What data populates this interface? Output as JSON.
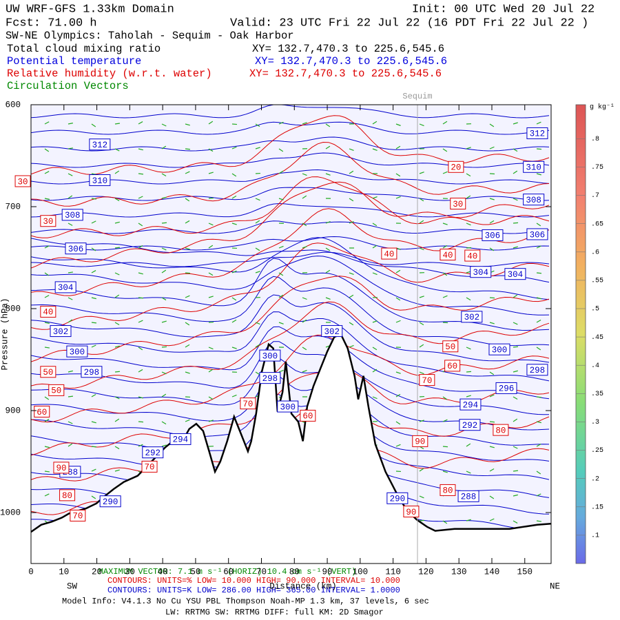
{
  "header": {
    "model": "UW WRF-GFS 1.33km Domain",
    "init": "Init: 00 UTC Wed 20 Jul 22",
    "fcst": "Fcst:    71.00 h",
    "valid": "Valid: 23 UTC Fri 22 Jul 22   (16 PDT Fri 22 Jul 22  )",
    "section": "SW-NE Olympics: Taholah - Sequim - Oak Harbor",
    "fields": [
      {
        "name": "Total cloud mixing ratio",
        "xy": "XY= 132.7,470.3 to 225.6,545.6",
        "color": "#000000"
      },
      {
        "name": "Potential temperature",
        "xy": "XY= 132.7,470.3 to 225.6,545.6",
        "color": "#0000dd"
      },
      {
        "name": "Relative humidity (w.r.t. water)",
        "xy": "XY= 132.7,470.3 to 225.6,545.6",
        "color": "#dd0000"
      },
      {
        "name": "Circulation Vectors",
        "color": "#008800"
      }
    ]
  },
  "chart_data": {
    "type": "cross-section",
    "x_label": "Distance (km)",
    "y_label": "Pressure (hPa)",
    "x_left": "SW",
    "x_right": "NE",
    "xlim": [
      0,
      158
    ],
    "xticks": [
      0,
      10,
      20,
      30,
      40,
      50,
      60,
      70,
      80,
      90,
      100,
      110,
      120,
      130,
      140,
      150
    ],
    "ylim": [
      600,
      1050
    ],
    "yticks": [
      600,
      700,
      800,
      900,
      1000
    ],
    "markers": [
      {
        "label": "Sequim",
        "x": 117.4
      }
    ],
    "terrain": {
      "x": [
        0,
        3.1,
        6.3,
        9.4,
        11.5,
        13.6,
        16.7,
        19.9,
        22.0,
        25.1,
        28.2,
        32.4,
        36.6,
        40.8,
        43.9,
        46.0,
        48.1,
        50.2,
        52.3,
        54.4,
        55.9,
        57.5,
        59.6,
        61.7,
        63.8,
        65.9,
        66.9,
        68.4,
        70.1,
        72.2,
        73.6,
        74.9,
        76.4,
        77.4,
        79.1,
        81.2,
        82.6,
        83.9,
        85.8,
        87.9,
        90.0,
        92.1,
        94.1,
        96.2,
        98.3,
        99.4,
        101.0,
        102.5,
        104.6,
        107.7,
        110.9,
        114.0,
        117.2,
        120.3,
        122.8,
        128.7,
        137.0,
        145.4,
        153.8,
        157.9
      ],
      "p": [
        1019,
        1012,
        1009,
        1005,
        1001,
        999,
        996,
        991,
        985,
        977,
        970,
        964,
        950,
        936,
        928,
        930,
        918,
        913,
        920,
        943,
        960,
        950,
        930,
        906,
        923,
        940,
        930,
        903,
        862,
        835,
        839,
        901,
        882,
        852,
        903,
        911,
        930,
        896,
        876,
        859,
        842,
        828,
        825,
        839,
        866,
        889,
        866,
        896,
        933,
        960,
        980,
        997,
        1007,
        1014,
        1018,
        1016,
        1016,
        1016,
        1012,
        1011
      ]
    },
    "theta_color": "#0000cc",
    "rh_color": "#dd0000",
    "theta_labels": [
      {
        "value": 312,
        "x": 20.9,
        "p": 639
      },
      {
        "value": 312,
        "x": 153.8,
        "p": 628
      },
      {
        "value": 310,
        "x": 20.9,
        "p": 674
      },
      {
        "value": 310,
        "x": 152.7,
        "p": 661
      },
      {
        "value": 308,
        "x": 12.6,
        "p": 708
      },
      {
        "value": 308,
        "x": 152.7,
        "p": 693
      },
      {
        "value": 306,
        "x": 13.6,
        "p": 741
      },
      {
        "value": 306,
        "x": 140.2,
        "p": 728
      },
      {
        "value": 306,
        "x": 153.8,
        "p": 727
      },
      {
        "value": 304,
        "x": 10.5,
        "p": 779
      },
      {
        "value": 304,
        "x": 136.6,
        "p": 764
      },
      {
        "value": 304,
        "x": 147.1,
        "p": 766
      },
      {
        "value": 302,
        "x": 9,
        "p": 822
      },
      {
        "value": 302,
        "x": 133.9,
        "p": 808
      },
      {
        "value": 302,
        "x": 91.4,
        "p": 822
      },
      {
        "value": 300,
        "x": 14,
        "p": 842
      },
      {
        "value": 300,
        "x": 72.6,
        "p": 846
      },
      {
        "value": 300,
        "x": 142.3,
        "p": 840
      },
      {
        "value": 300,
        "x": 78,
        "p": 896
      },
      {
        "value": 298,
        "x": 18.4,
        "p": 862
      },
      {
        "value": 298,
        "x": 72.6,
        "p": 868
      },
      {
        "value": 298,
        "x": 153.8,
        "p": 860
      },
      {
        "value": 296,
        "x": 144.4,
        "p": 878
      },
      {
        "value": 294,
        "x": 133.5,
        "p": 894
      },
      {
        "value": 292,
        "x": 133.3,
        "p": 914
      },
      {
        "value": 292,
        "x": 37,
        "p": 941
      },
      {
        "value": 294,
        "x": 45.4,
        "p": 928
      },
      {
        "value": 288,
        "x": 11.9,
        "p": 960
      },
      {
        "value": 288,
        "x": 132.9,
        "p": 984
      },
      {
        "value": 290,
        "x": 24.1,
        "p": 989
      },
      {
        "value": 290,
        "x": 111.3,
        "p": 986
      }
    ],
    "rh_labels": [
      {
        "value": 20,
        "x": 129.1,
        "p": 661
      },
      {
        "value": 30,
        "x": -2.5,
        "p": 675
      },
      {
        "value": 30,
        "x": 5.2,
        "p": 714
      },
      {
        "value": 30,
        "x": 129.7,
        "p": 697
      },
      {
        "value": 40,
        "x": 108.8,
        "p": 746
      },
      {
        "value": 40,
        "x": 126.6,
        "p": 747
      },
      {
        "value": 40,
        "x": 134.1,
        "p": 748
      },
      {
        "value": 40,
        "x": 5.2,
        "p": 803
      },
      {
        "value": 50,
        "x": 5.2,
        "p": 862
      },
      {
        "value": 50,
        "x": 7.7,
        "p": 880
      },
      {
        "value": 50,
        "x": 127.4,
        "p": 837
      },
      {
        "value": 60,
        "x": 3.3,
        "p": 901
      },
      {
        "value": 60,
        "x": 128,
        "p": 856
      },
      {
        "value": 60,
        "x": 84.1,
        "p": 905
      },
      {
        "value": 70,
        "x": 65.9,
        "p": 893
      },
      {
        "value": 70,
        "x": 120.3,
        "p": 870
      },
      {
        "value": 70,
        "x": 36,
        "p": 955
      },
      {
        "value": 70,
        "x": 14.2,
        "p": 1003
      },
      {
        "value": 80,
        "x": 11,
        "p": 983
      },
      {
        "value": 80,
        "x": 142.7,
        "p": 919
      },
      {
        "value": 80,
        "x": 126.6,
        "p": 978
      },
      {
        "value": 90,
        "x": 9.2,
        "p": 956
      },
      {
        "value": 90,
        "x": 118.2,
        "p": 930
      },
      {
        "value": 90,
        "x": 115.5,
        "p": 999
      }
    ],
    "colorbar": {
      "units": "g kg⁻¹",
      "lim": [
        0.05,
        0.86
      ],
      "ticks": [
        {
          "value": 0.1,
          "label": ".1"
        },
        {
          "value": 0.15,
          "label": ".15"
        },
        {
          "value": 0.2,
          "label": ".2"
        },
        {
          "value": 0.25,
          "label": ".25"
        },
        {
          "value": 0.3,
          "label": ".3"
        },
        {
          "value": 0.35,
          "label": ".35"
        },
        {
          "value": 0.4,
          "label": ".4"
        },
        {
          "value": 0.45,
          "label": ".45"
        },
        {
          "value": 0.5,
          "label": ".5"
        },
        {
          "value": 0.55,
          "label": ".55"
        },
        {
          "value": 0.6,
          "label": ".6"
        },
        {
          "value": 0.65,
          "label": ".65"
        },
        {
          "value": 0.7,
          "label": ".7"
        },
        {
          "value": 0.75,
          "label": ".75"
        },
        {
          "value": 0.8,
          "label": ".8"
        }
      ]
    }
  },
  "footer": {
    "max_vector": "MAXIMUM VECTOR:  7.1 m s⁻¹ (HORIZ)    10.4 cm s⁻¹ (VERT)",
    "rh_contours": "CONTOURS:  UNITS=%   LOW=  10.000      HIGH=  90.000      INTERVAL=  10.000",
    "theta_contours": "CONTOURS:  UNITS=K   LOW=  286.00      HIGH=  365.00      INTERVAL=  1.0000",
    "model_info": "Model Info: V4.1.3    No Cu    YSU PBL   Thompson     Noah-MP    1.3 km,   37 levels,    6 sec",
    "physics": "LW: RRTMG  SW: RRTMG    DIFF: full   KM: 2D Smagor"
  }
}
